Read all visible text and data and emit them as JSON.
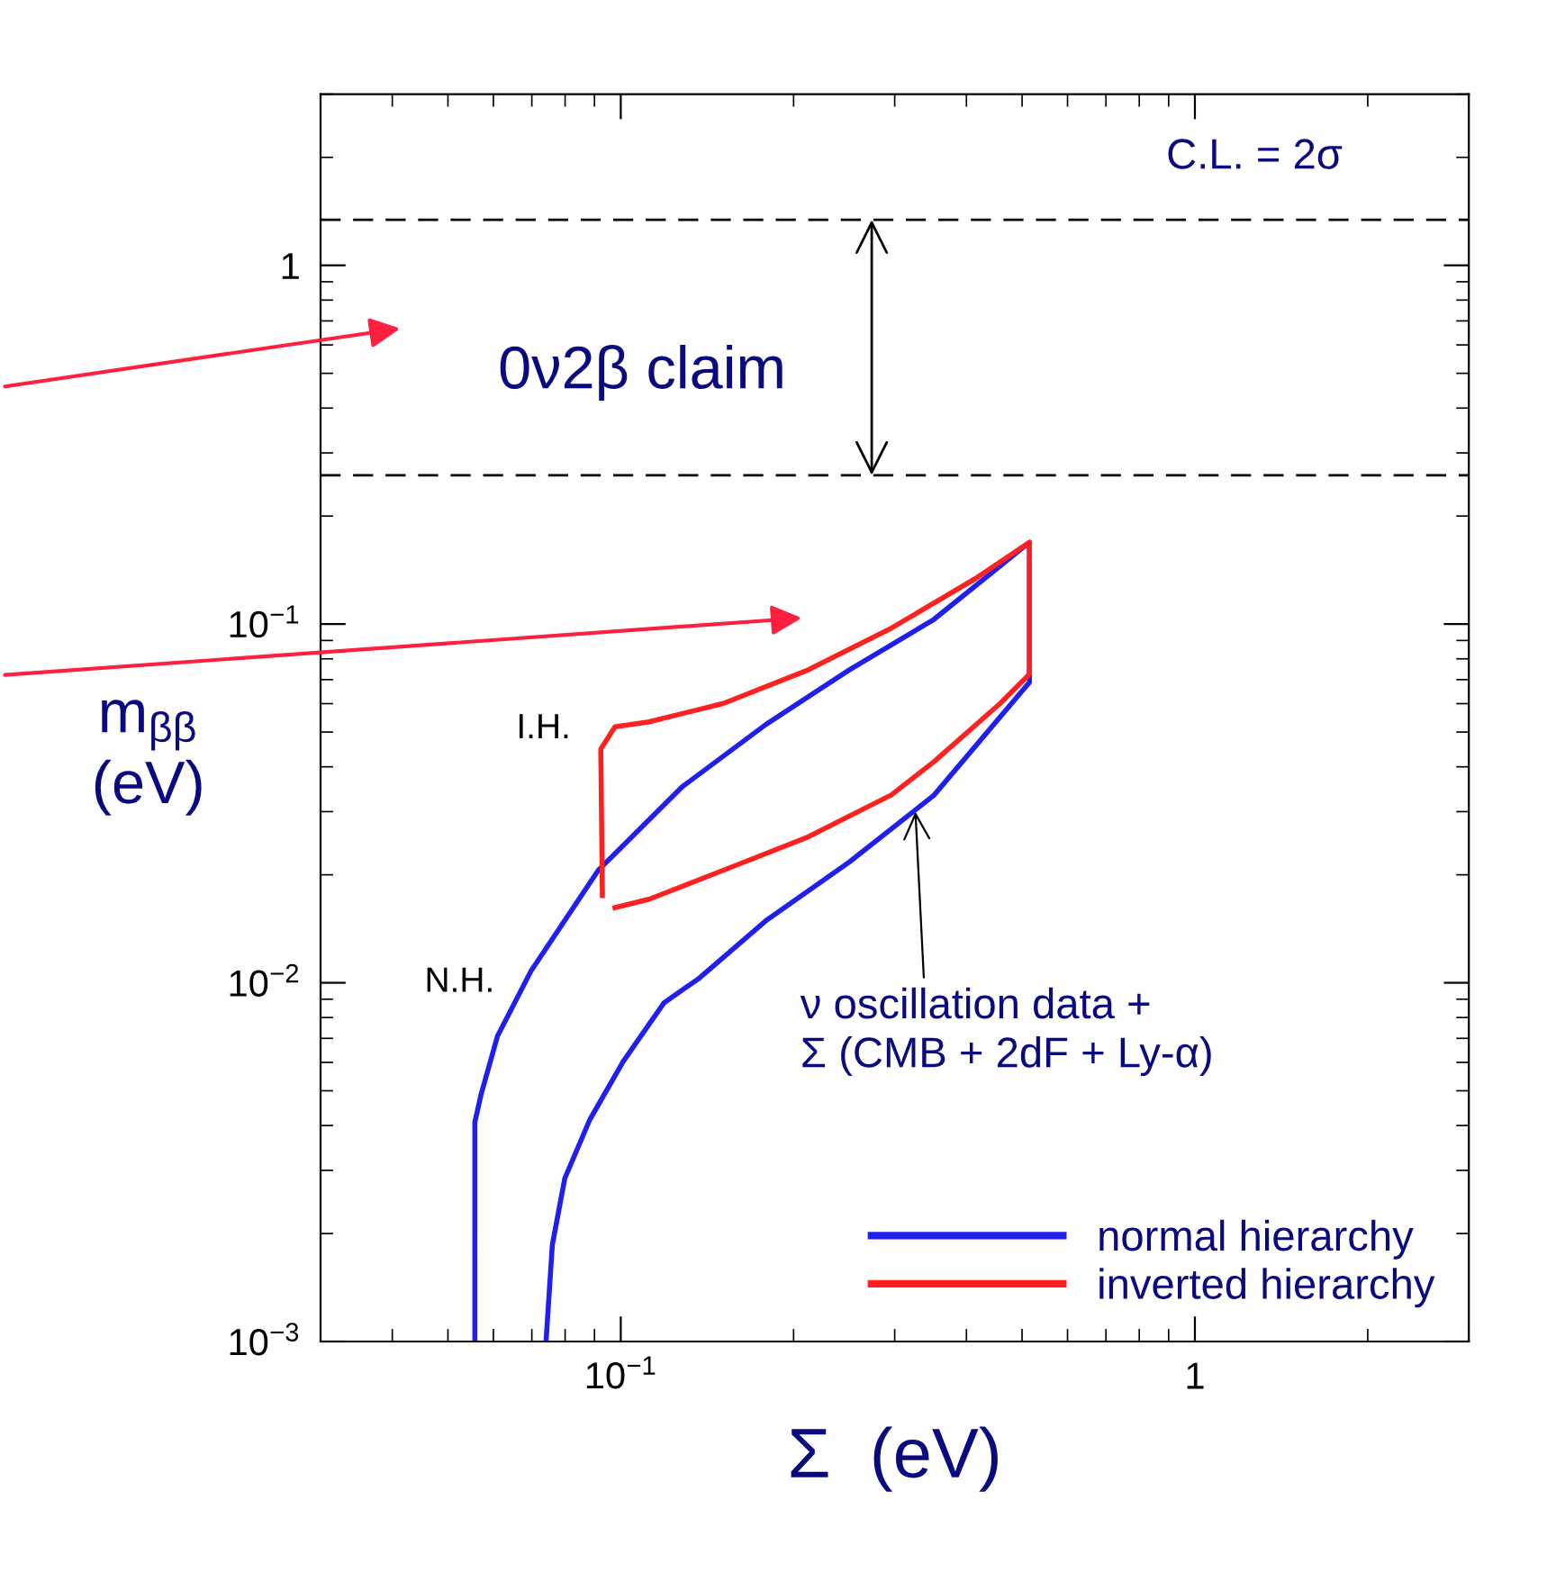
{
  "chart_data": {
    "type": "line",
    "xlabel": "Σ  (eV)",
    "ylabel": "m$_{ββ}$\n(eV)",
    "log": "xy",
    "xlim": [
      0.03,
      3
    ],
    "ylim": [
      0.001,
      3
    ],
    "xticks": [
      {
        "value": 0.1,
        "label": "10$^{−1}$"
      },
      1
    ],
    "yticks": [
      {
        "value": 0.001,
        "label": "10$^{−3}$"
      },
      {
        "value": 0.01,
        "label": "10$^{−2}$"
      },
      {
        "value": 0.1,
        "label": "10$^{−1}$"
      },
      1
    ],
    "grid": false,
    "legend": "bottom right",
    "line_style": "solid",
    "marker": "none",
    "series": [
      {
        "name": "normal hierarchy",
        "color": "#1f1fee",
        "x": [
          0.0557,
          0.0557,
          0.0571,
          0.061,
          0.0698,
          0.0914,
          0.128,
          0.179,
          0.25,
          0.351,
          0.515,
          0.515,
          0.351,
          0.25,
          0.179,
          0.137,
          0.119,
          0.101,
          0.0883,
          0.0799,
          0.076,
          0.0741
        ],
        "values": [
          0.001,
          0.00409,
          0.00488,
          0.0071,
          0.0108,
          0.0206,
          0.0352,
          0.0525,
          0.0745,
          0.103,
          0.169,
          0.0688,
          0.0333,
          0.0217,
          0.0149,
          0.0103,
          0.0088,
          0.00604,
          0.00415,
          0.00285,
          0.00186,
          0.001
        ]
      },
      {
        "name": "inverted hierarchy",
        "color": "#ff2020",
        "x": [
          0.0929,
          0.0923,
          0.0977,
          0.112,
          0.151,
          0.212,
          0.296,
          0.415,
          0.515,
          0.515,
          0.458,
          0.351,
          0.296,
          0.212,
          0.151,
          0.112,
          0.0977
        ],
        "values": [
          0.0175,
          0.0448,
          0.0517,
          0.0534,
          0.0601,
          0.0745,
          0.0974,
          0.134,
          0.169,
          0.0725,
          0.0601,
          0.0413,
          0.0334,
          0.0255,
          0.0206,
          0.0171,
          0.0162
        ]
      }
    ],
    "ref_lines": [
      {
        "axis": "y",
        "value": 0.26,
        "color": "#000000",
        "line_style": "dashed"
      },
      {
        "axis": "y",
        "value": 1.34,
        "color": "#000000",
        "line_style": "dashed"
      }
    ],
    "annotations": [
      "C.L. = 2σ",
      "0ν2β claim",
      {
        "text": "I.H.",
        "x": 0.0923,
        "y": 0.0448
      },
      {
        "text": "N.H.",
        "x": 0.068,
        "y": 0.01
      },
      {
        "text": "ν oscillation data +\nΣ (CMB + 2dF + Ly-α)",
        "x": 0.326,
        "y": 0.03
      }
    ]
  }
}
